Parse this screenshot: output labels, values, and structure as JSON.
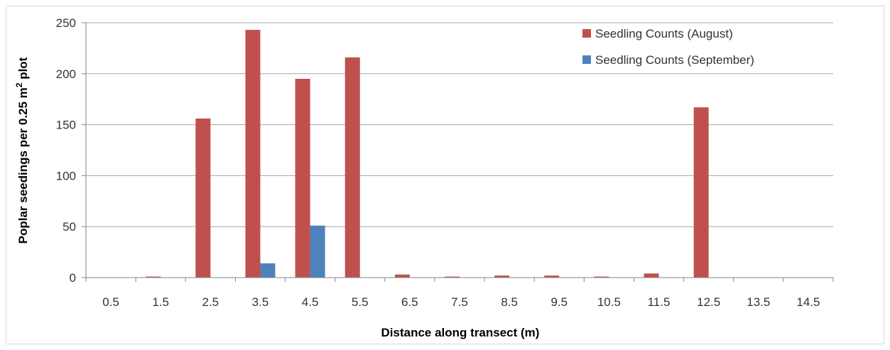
{
  "chart_data": {
    "type": "bar",
    "categories": [
      "0.5",
      "1.5",
      "2.5",
      "3.5",
      "4.5",
      "5.5",
      "6.5",
      "7.5",
      "8.5",
      "9.5",
      "10.5",
      "11.5",
      "12.5",
      "13.5",
      "14.5"
    ],
    "series": [
      {
        "name": "Seedling Counts (August)",
        "color": "#c0504d",
        "values": [
          0,
          1,
          156,
          243,
          195,
          216,
          3,
          1,
          2,
          2,
          1,
          4,
          167,
          0,
          0
        ]
      },
      {
        "name": "Seedling Counts (September)",
        "color": "#4f81bd",
        "values": [
          0,
          0,
          0,
          14,
          51,
          0,
          0,
          0,
          0,
          0,
          0,
          0,
          0,
          0,
          0
        ]
      }
    ],
    "xlabel": "Distance along transect (m)",
    "ylabel": {
      "pre": "Poplar seedings per 0.25 m",
      "sup": "2",
      "post": " plot"
    },
    "ylim": [
      0,
      250
    ],
    "yticks": [
      0,
      50,
      100,
      150,
      200,
      250
    ],
    "grid": true,
    "legend_position": "top-right",
    "gridline_color": "#a6a6a6",
    "axis_color": "#868686"
  }
}
